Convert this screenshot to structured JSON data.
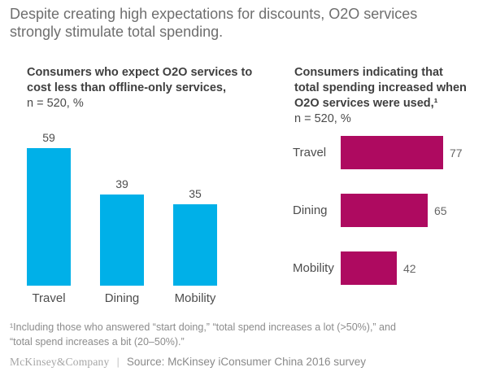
{
  "title_lines": [
    "Despite creating high expectations for discounts, O2O services",
    "strongly stimulate total spending."
  ],
  "chart_data": [
    {
      "type": "bar",
      "orientation": "vertical",
      "heading_lines": [
        "Consumers who expect O2O services to",
        "cost less than offline-only services,"
      ],
      "title": "Consumers who expect O2O services to cost less than offline-only services,",
      "subtitle": "n = 520, %",
      "categories": [
        "Travel",
        "Dining",
        "Mobility"
      ],
      "values": [
        59,
        39,
        35
      ],
      "bar_color": "#00b0e8",
      "axes": "none",
      "gridlines": false,
      "data_labels": true
    },
    {
      "type": "bar",
      "orientation": "horizontal",
      "heading_lines": [
        "Consumers indicating that",
        "total spending increased when",
        "O2O services were used,¹"
      ],
      "title": "Consumers indicating that total spending increased when O2O services were used,¹",
      "subtitle": "n = 520, %",
      "categories": [
        "Travel",
        "Dining",
        "Mobility"
      ],
      "values": [
        77,
        65,
        42
      ],
      "bar_color": "#ae0a60",
      "axes": "none",
      "gridlines": false,
      "data_labels": true
    }
  ],
  "footnote_lines": [
    "¹Including those who answered “start doing,” “total spend increases a lot (>50%),” and",
    "“total spend increases a bit (20–50%).”"
  ],
  "footer": {
    "brand": "McKinsey&Company",
    "separator": "|",
    "source": "Source: McKinsey iConsumer China 2016 survey"
  },
  "colors": {
    "title_text": "#6e6e6e",
    "heading_text": "#3f3f3f",
    "label_text": "#4d4d4d",
    "footnote_text": "#8c8c8c",
    "left_bar": "#00b0e8",
    "right_bar": "#ae0a60"
  }
}
